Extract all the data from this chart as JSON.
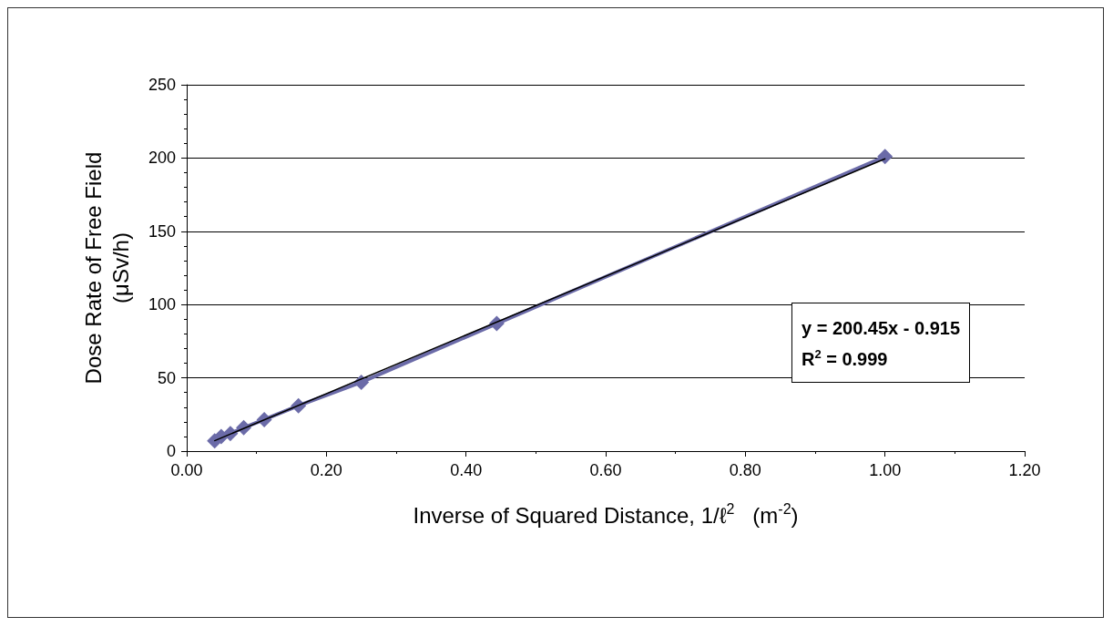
{
  "chart_data": {
    "type": "line",
    "xlabel": "Inverse of Squared Distance, 1/ℓ$^{2}$   (m$^{-2}$)",
    "ylabel": "Dose Rate of Free Field\n(μSv/h)",
    "xlim": [
      0,
      1.2
    ],
    "xticks": [
      {
        "value": 0,
        "label": "0.00"
      },
      {
        "value": 0.2,
        "label": "0.20"
      },
      {
        "value": 0.4,
        "label": "0.40"
      },
      {
        "value": 0.6,
        "label": "0.60"
      },
      {
        "value": 0.8,
        "label": "0.80"
      },
      {
        "value": 1,
        "label": "1.00"
      },
      {
        "value": 1.2,
        "label": "1.20"
      }
    ],
    "ylim": [
      0,
      250
    ],
    "yticks": [
      0,
      50,
      100,
      150,
      200,
      250
    ],
    "grid": "y",
    "legend": false,
    "marker": "diamond",
    "line_style": "solid",
    "series": [
      {
        "color": "#6b6ba8",
        "x": [
          0.04,
          0.0494,
          0.0625,
          0.0816,
          0.111,
          0.16,
          0.25,
          0.444,
          1
        ],
        "values": [
          7,
          10,
          12,
          16,
          21.5,
          31,
          47,
          87,
          201
        ]
      },
      {
        "type": "line",
        "marker": "none",
        "color": "#000000",
        "x": [
          0.04,
          1
        ],
        "values": [
          7.1,
          199.5
        ]
      }
    ],
    "annotations": [
      "y = 200.45x - 0.915",
      "R$^{2}$ = 0.999"
    ]
  }
}
